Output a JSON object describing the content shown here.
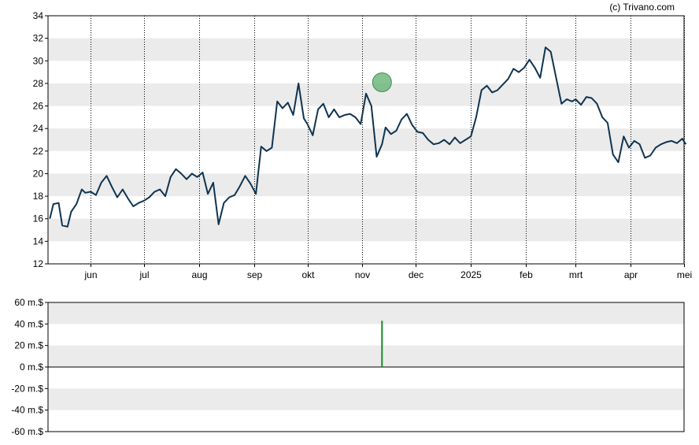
{
  "credit": "(c) Trivano.com",
  "colors": {
    "price_line": "#0f3450",
    "band": "#ebebeb",
    "grid_dotted": "#000000",
    "marker_fill": "#5fae6e",
    "volume_bar": "#1a8a2a"
  },
  "chart_data": [
    {
      "type": "line",
      "name": "price",
      "ylim": [
        12,
        34
      ],
      "yticks": [
        "12",
        "14",
        "16",
        "18",
        "20",
        "22",
        "24",
        "26",
        "28",
        "30",
        "32",
        "34"
      ],
      "xticks": [
        "jun",
        "jul",
        "aug",
        "sep",
        "okt",
        "nov",
        "dec",
        "2025",
        "feb",
        "mrt",
        "apr",
        "mei"
      ],
      "grid": "horizontal bands, dotted vertical lines at month ticks",
      "x": [
        "2024-05-09",
        "2024-05-11",
        "2024-05-14",
        "2024-05-16",
        "2024-05-19",
        "2024-05-21",
        "2024-05-24",
        "2024-05-27",
        "2024-05-29",
        "2024-06-01",
        "2024-06-04",
        "2024-06-07",
        "2024-06-10",
        "2024-06-13",
        "2024-06-16",
        "2024-06-19",
        "2024-06-22",
        "2024-06-25",
        "2024-06-28",
        "2024-07-01",
        "2024-07-04",
        "2024-07-07",
        "2024-07-10",
        "2024-07-13",
        "2024-07-16",
        "2024-07-19",
        "2024-07-22",
        "2024-07-25",
        "2024-07-28",
        "2024-07-31",
        "2024-08-03",
        "2024-08-06",
        "2024-08-09",
        "2024-08-12",
        "2024-08-15",
        "2024-08-18",
        "2024-08-21",
        "2024-08-24",
        "2024-08-27",
        "2024-08-30",
        "2024-09-02",
        "2024-09-05",
        "2024-09-08",
        "2024-09-11",
        "2024-09-14",
        "2024-09-17",
        "2024-09-20",
        "2024-09-23",
        "2024-09-26",
        "2024-09-29",
        "2024-10-01",
        "2024-10-04",
        "2024-10-07",
        "2024-10-10",
        "2024-10-13",
        "2024-10-16",
        "2024-10-19",
        "2024-10-22",
        "2024-10-25",
        "2024-10-28",
        "2024-10-31",
        "2024-11-03",
        "2024-11-06",
        "2024-11-09",
        "2024-11-12",
        "2024-11-14",
        "2024-11-17",
        "2024-11-20",
        "2024-11-23",
        "2024-11-26",
        "2024-11-29",
        "2024-12-02",
        "2024-12-05",
        "2024-12-08",
        "2024-12-11",
        "2024-12-14",
        "2024-12-17",
        "2024-12-20",
        "2024-12-23",
        "2024-12-26",
        "2024-12-29",
        "2025-01-01",
        "2025-01-04",
        "2025-01-07",
        "2025-01-10",
        "2025-01-13",
        "2025-01-16",
        "2025-01-19",
        "2025-01-22",
        "2025-01-25",
        "2025-01-28",
        "2025-01-31",
        "2025-02-03",
        "2025-02-06",
        "2025-02-09",
        "2025-02-12",
        "2025-02-15",
        "2025-02-18",
        "2025-02-21",
        "2025-02-24",
        "2025-02-27",
        "2025-03-01",
        "2025-03-04",
        "2025-03-07",
        "2025-03-10",
        "2025-03-13",
        "2025-03-16",
        "2025-03-19",
        "2025-03-22",
        "2025-03-25",
        "2025-03-28",
        "2025-03-31",
        "2025-04-03",
        "2025-04-06",
        "2025-04-09",
        "2025-04-12",
        "2025-04-15",
        "2025-04-18",
        "2025-04-21",
        "2025-04-24",
        "2025-04-27",
        "2025-04-30",
        "2025-05-02"
      ],
      "values": [
        16.0,
        17.3,
        17.4,
        15.4,
        15.3,
        16.6,
        17.3,
        18.6,
        18.3,
        18.4,
        18.1,
        19.2,
        19.8,
        18.8,
        17.9,
        18.6,
        17.8,
        17.1,
        17.4,
        17.6,
        17.9,
        18.4,
        18.6,
        18.0,
        19.7,
        20.4,
        20.0,
        19.5,
        20.0,
        19.7,
        20.1,
        18.2,
        19.2,
        15.5,
        17.4,
        17.9,
        18.1,
        18.9,
        19.8,
        19.1,
        18.2,
        22.4,
        22.0,
        22.3,
        26.4,
        25.8,
        26.3,
        25.2,
        28.0,
        24.9,
        24.4,
        23.4,
        25.7,
        26.2,
        25.0,
        25.7,
        25.0,
        25.2,
        25.3,
        25.0,
        24.4,
        27.1,
        26.0,
        21.5,
        22.6,
        24.1,
        23.5,
        23.8,
        24.8,
        25.3,
        24.3,
        23.7,
        23.6,
        23.0,
        22.6,
        22.7,
        23.0,
        22.6,
        23.2,
        22.7,
        23.0,
        23.3,
        25.0,
        27.4,
        27.8,
        27.2,
        27.4,
        27.9,
        28.4,
        29.3,
        29.0,
        29.4,
        30.1,
        29.4,
        28.5,
        31.2,
        30.8,
        28.5,
        26.2,
        26.6,
        26.4,
        26.6,
        26.1,
        26.8,
        26.7,
        26.2,
        25.0,
        24.5,
        21.7,
        21.0,
        23.3,
        22.3,
        22.9,
        22.6,
        21.4,
        21.6,
        22.3,
        22.6,
        22.8,
        22.9,
        22.7,
        23.1,
        22.6
      ]
    },
    {
      "type": "bar",
      "name": "volume",
      "ylim": [
        -60,
        60
      ],
      "yticks": [
        "-60 m.$",
        "-40 m.$",
        "-20 m.$",
        "0 m.$",
        "20 m.$",
        "40 m.$",
        "60 m.$"
      ],
      "x": [
        "2024-11-12"
      ],
      "values": [
        43
      ],
      "marker_on_price_at": "2024-11-12"
    }
  ]
}
